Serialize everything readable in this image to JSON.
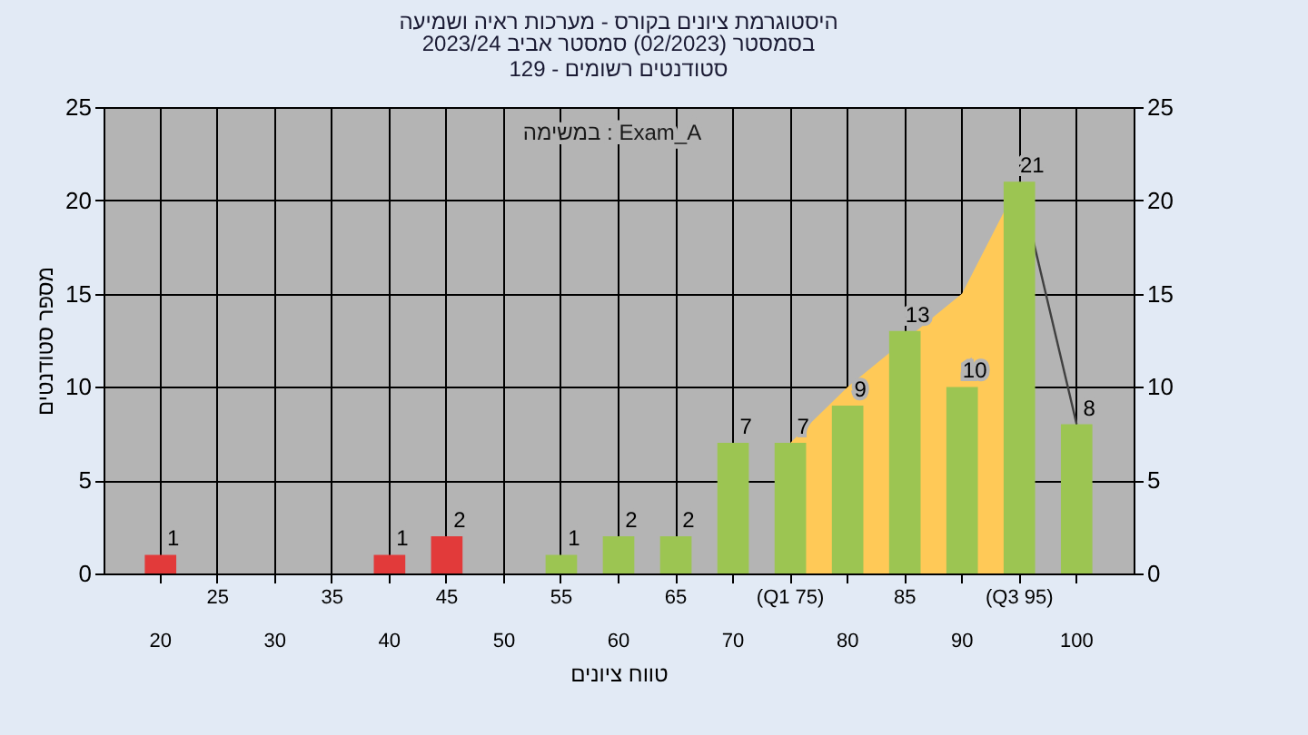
{
  "chart_data": {
    "type": "bar",
    "title": "היסטוגרמת ציונים בקורס - מערכות ראיה ושמיעה",
    "subtitle": "בסמסטר  (02/2023)  סמסטר אביב 2023/24\n129 - סטודנטים רשומים",
    "xlabel": "טווח ציונים",
    "ylabel": "מספר סטודנטים",
    "annotations": [
      "במשימה : Exam_A"
    ],
    "categories": [
      "20",
      "25",
      "30",
      "35",
      "40",
      "45",
      "50",
      "55",
      "60",
      "65",
      "70",
      "(Q1 75)",
      "80",
      "85",
      "90",
      "(Q3 95)",
      "100"
    ],
    "series": [
      {
        "type": "area",
        "color": "#ffc957",
        "values": [
          null,
          null,
          null,
          null,
          null,
          null,
          null,
          null,
          null,
          null,
          null,
          7,
          10,
          null,
          15,
          21,
          null
        ]
      },
      {
        "type": "line",
        "color": "#404040",
        "values": [
          null,
          null,
          null,
          null,
          null,
          null,
          null,
          null,
          null,
          null,
          null,
          null,
          null,
          null,
          null,
          21,
          8
        ]
      },
      {
        "colors": [
          "#e23a3a",
          "#e23a3a",
          "#e23a3a",
          "#e23a3a",
          "#e23a3a",
          "#e23a3a",
          "#9cc552",
          "#9cc552",
          "#9cc552",
          "#9cc552",
          "#9cc552",
          "#9cc552",
          "#9cc552",
          "#9cc552",
          "#9cc552",
          "#9cc552",
          "#9cc552"
        ],
        "values": [
          1,
          null,
          null,
          null,
          1,
          2,
          null,
          1,
          2,
          2,
          7,
          7,
          9,
          13,
          10,
          21,
          8
        ],
        "value_labels": [
          "1",
          null,
          null,
          null,
          "1",
          "2",
          null,
          "1",
          "2",
          "2",
          "7",
          "7",
          "9",
          "13",
          "10",
          "21",
          "8"
        ]
      }
    ],
    "ylim": [
      0,
      25
    ],
    "yticks": [
      0,
      5,
      10,
      15,
      20,
      25
    ],
    "y2lim": [
      0,
      25
    ],
    "y2ticks": [
      0,
      5,
      10,
      15,
      20,
      25
    ],
    "grid": true
  }
}
